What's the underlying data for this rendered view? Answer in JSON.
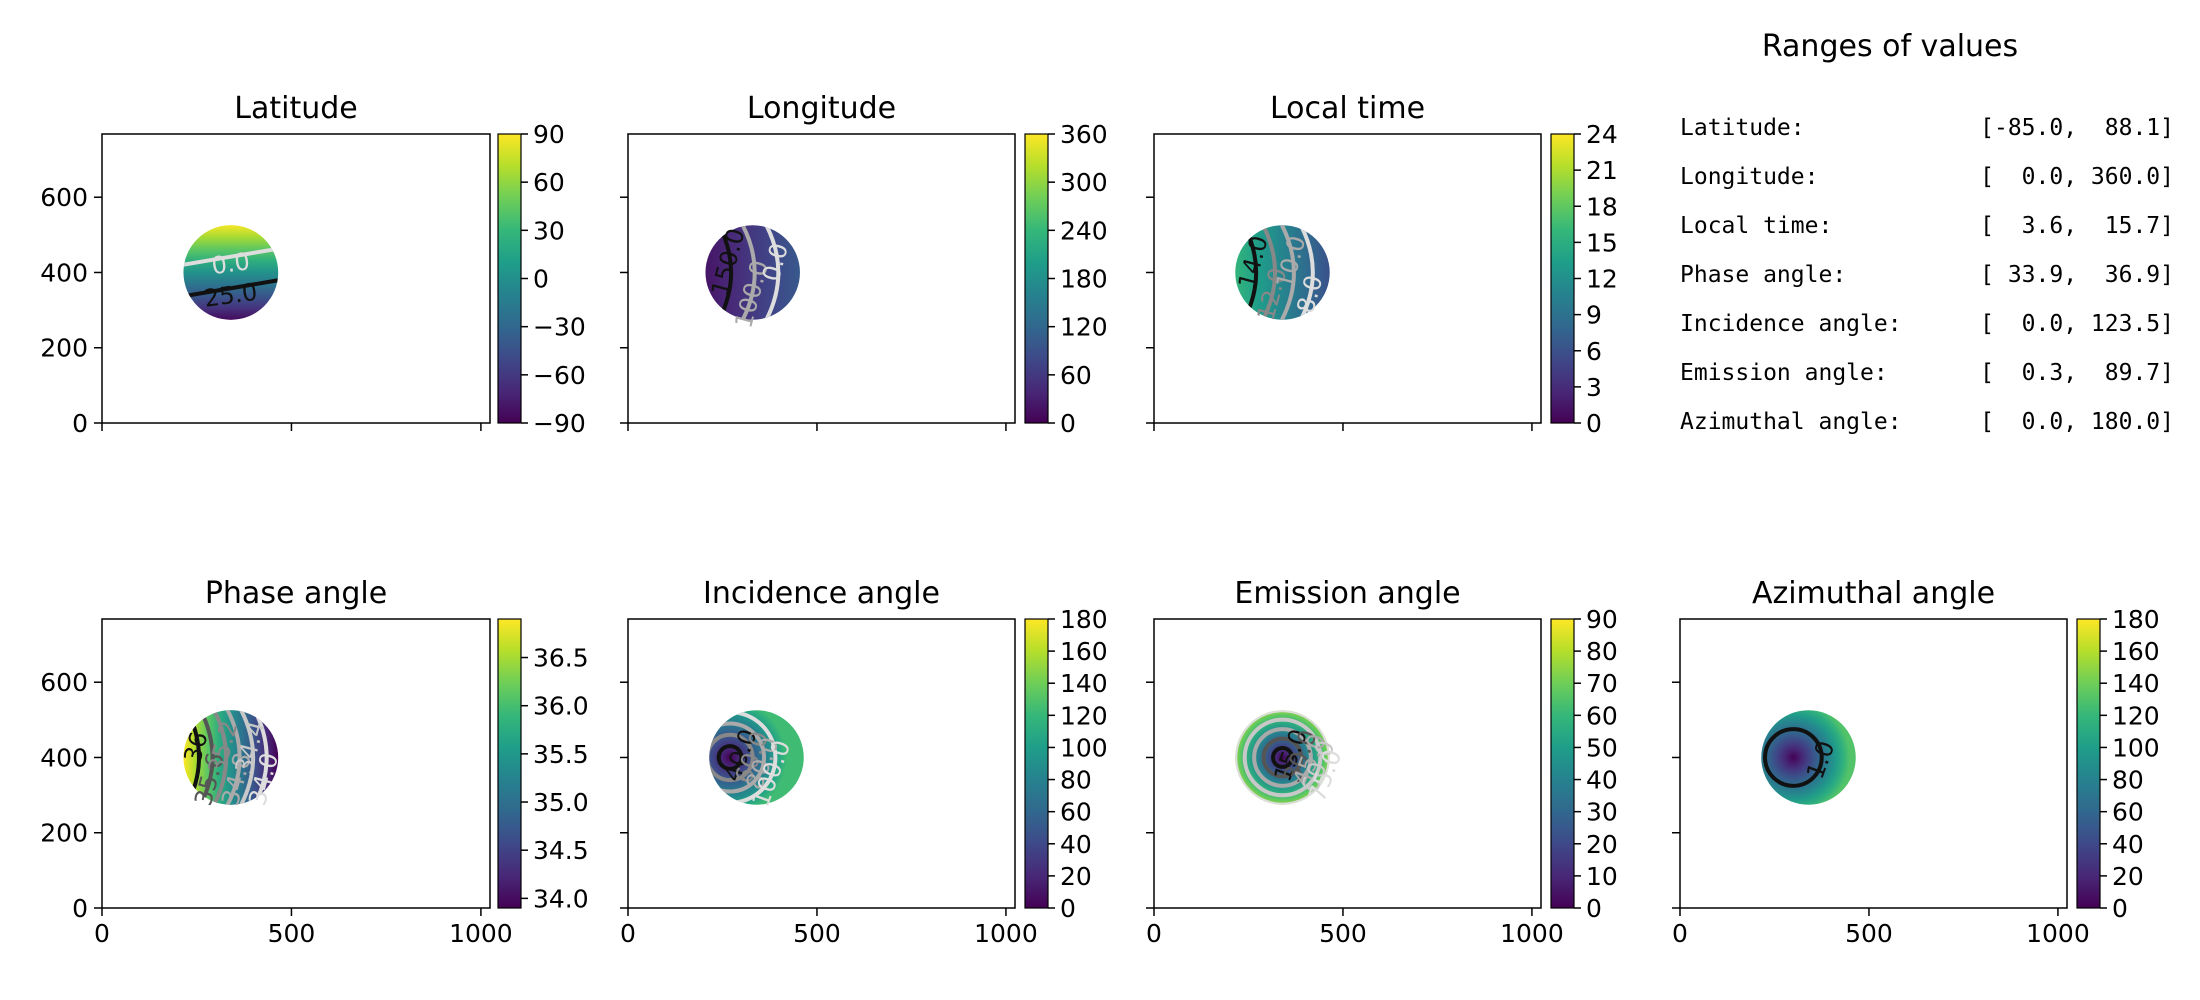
{
  "ranges": {
    "title": "Ranges of values",
    "rows": [
      {
        "label": "Latitude:",
        "value": "[-85.0,  88.1]"
      },
      {
        "label": "Longitude:",
        "value": "[  0.0, 360.0]"
      },
      {
        "label": "Local time:",
        "value": "[  3.6,  15.7]"
      },
      {
        "label": "Phase angle:",
        "value": "[ 33.9,  36.9]"
      },
      {
        "label": "Incidence angle:",
        "value": "[  0.0, 123.5]"
      },
      {
        "label": "Emission angle:",
        "value": "[  0.3,  89.7]"
      },
      {
        "label": "Azimuthal angle:",
        "value": "[  0.0, 180.0]"
      }
    ]
  },
  "chart_data": [
    {
      "type": "heatmap",
      "title": "Latitude",
      "xlim": [
        0,
        1024
      ],
      "ylim": [
        0,
        768
      ],
      "xticks": [
        0,
        500,
        1000
      ],
      "yticks": [
        0,
        200,
        400,
        600
      ],
      "show_xticklabels": false,
      "show_yticklabels": true,
      "colormap": "viridis",
      "colorbar": {
        "min": -90,
        "max": 90,
        "ticks": [
          -90,
          -60,
          -30,
          0,
          30,
          60,
          90
        ]
      },
      "disk": {
        "cx": 340,
        "cy": 400,
        "r": 125
      },
      "gradient": {
        "direction": "vertical",
        "start_value": -85,
        "end_value": 88.1
      },
      "contour_labels": [
        "25.0",
        "0.0"
      ]
    },
    {
      "type": "heatmap",
      "title": "Longitude",
      "xlim": [
        0,
        1024
      ],
      "ylim": [
        0,
        768
      ],
      "xticks": [
        0,
        500,
        1000
      ],
      "yticks": [
        0,
        200,
        400,
        600
      ],
      "show_xticklabels": false,
      "show_yticklabels": false,
      "colormap": "viridis",
      "colorbar": {
        "min": 0,
        "max": 360,
        "ticks": [
          0,
          60,
          120,
          180,
          240,
          300,
          360
        ]
      },
      "disk": {
        "cx": 330,
        "cy": 400,
        "r": 125
      },
      "gradient": {
        "direction": "horizontal",
        "start_value": 20,
        "end_value": 100
      },
      "contour_labels": [
        "150.0",
        "100.0",
        "0.0"
      ]
    },
    {
      "type": "heatmap",
      "title": "Local time",
      "xlim": [
        0,
        1024
      ],
      "ylim": [
        0,
        768
      ],
      "xticks": [
        0,
        500,
        1000
      ],
      "yticks": [
        0,
        200,
        400,
        600
      ],
      "show_xticklabels": false,
      "show_yticklabels": false,
      "colormap": "viridis",
      "colorbar": {
        "min": 0,
        "max": 24,
        "ticks": [
          0,
          3,
          6,
          9,
          12,
          15,
          18,
          21,
          24
        ]
      },
      "disk": {
        "cx": 340,
        "cy": 400,
        "r": 125
      },
      "gradient": {
        "direction": "horizontal",
        "start_value": 15.7,
        "end_value": 6
      },
      "contour_labels": [
        "14.0",
        "12.0",
        "10.0",
        "8.0"
      ]
    },
    {
      "type": "heatmap",
      "title": "Phase angle",
      "xlim": [
        0,
        1024
      ],
      "ylim": [
        0,
        768
      ],
      "xticks": [
        0,
        500,
        1000
      ],
      "yticks": [
        0,
        200,
        400,
        600
      ],
      "show_xticklabels": true,
      "show_yticklabels": true,
      "colormap": "viridis",
      "colorbar": {
        "min": 33.9,
        "max": 36.9,
        "ticks": [
          34.0,
          34.5,
          35.0,
          35.5,
          36.0,
          36.5
        ]
      },
      "disk": {
        "cx": 340,
        "cy": 400,
        "r": 125
      },
      "gradient": {
        "direction": "horizontal",
        "start_value": 36.9,
        "end_value": 33.9
      },
      "contour_labels": [
        "36",
        "35.6",
        "35.2",
        "34.8",
        "34.4",
        "34.0"
      ]
    },
    {
      "type": "heatmap",
      "title": "Incidence angle",
      "xlim": [
        0,
        1024
      ],
      "ylim": [
        0,
        768
      ],
      "xticks": [
        0,
        500,
        1000
      ],
      "yticks": [
        0,
        200,
        400,
        600
      ],
      "show_xticklabels": true,
      "show_yticklabels": false,
      "colormap": "viridis",
      "colorbar": {
        "min": 0,
        "max": 180,
        "ticks": [
          0,
          20,
          40,
          60,
          80,
          100,
          120,
          140,
          160,
          180
        ]
      },
      "disk": {
        "cx": 340,
        "cy": 400,
        "r": 125
      },
      "gradient": {
        "direction": "radial",
        "center": [
          270,
          400
        ],
        "start_value": 0,
        "end_value": 123.5
      },
      "contour_labels": [
        "40.0",
        "60.0",
        "80.0",
        "100.0"
      ]
    },
    {
      "type": "heatmap",
      "title": "Emission angle",
      "xlim": [
        0,
        1024
      ],
      "ylim": [
        0,
        768
      ],
      "xticks": [
        0,
        500,
        1000
      ],
      "yticks": [
        0,
        200,
        400,
        600
      ],
      "show_xticklabels": true,
      "show_yticklabels": false,
      "colormap": "viridis",
      "colorbar": {
        "min": 0,
        "max": 90,
        "ticks": [
          0,
          10,
          20,
          30,
          40,
          50,
          60,
          70,
          80,
          90
        ]
      },
      "disk": {
        "cx": 340,
        "cy": 400,
        "r": 125
      },
      "gradient": {
        "direction": "radial",
        "center": [
          340,
          400
        ],
        "start_value": 0.3,
        "end_value": 89.7
      },
      "contour_labels": [
        "15.0",
        "30.0",
        "45.0",
        "60.0",
        "75.0"
      ]
    },
    {
      "type": "heatmap",
      "title": "Azimuthal angle",
      "xlim": [
        0,
        1024
      ],
      "ylim": [
        0,
        768
      ],
      "xticks": [
        0,
        500,
        1000
      ],
      "yticks": [
        0,
        200,
        400,
        600
      ],
      "show_xticklabels": true,
      "show_yticklabels": false,
      "colormap": "viridis",
      "colorbar": {
        "min": 0,
        "max": 180,
        "ticks": [
          0,
          20,
          40,
          60,
          80,
          100,
          120,
          140,
          160,
          180
        ]
      },
      "disk": {
        "cx": 340,
        "cy": 400,
        "r": 125
      },
      "gradient": {
        "direction": "radial",
        "center": [
          300,
          400
        ],
        "start_value": 0,
        "end_value": 130
      },
      "contour_labels": [
        "1.0"
      ]
    }
  ]
}
